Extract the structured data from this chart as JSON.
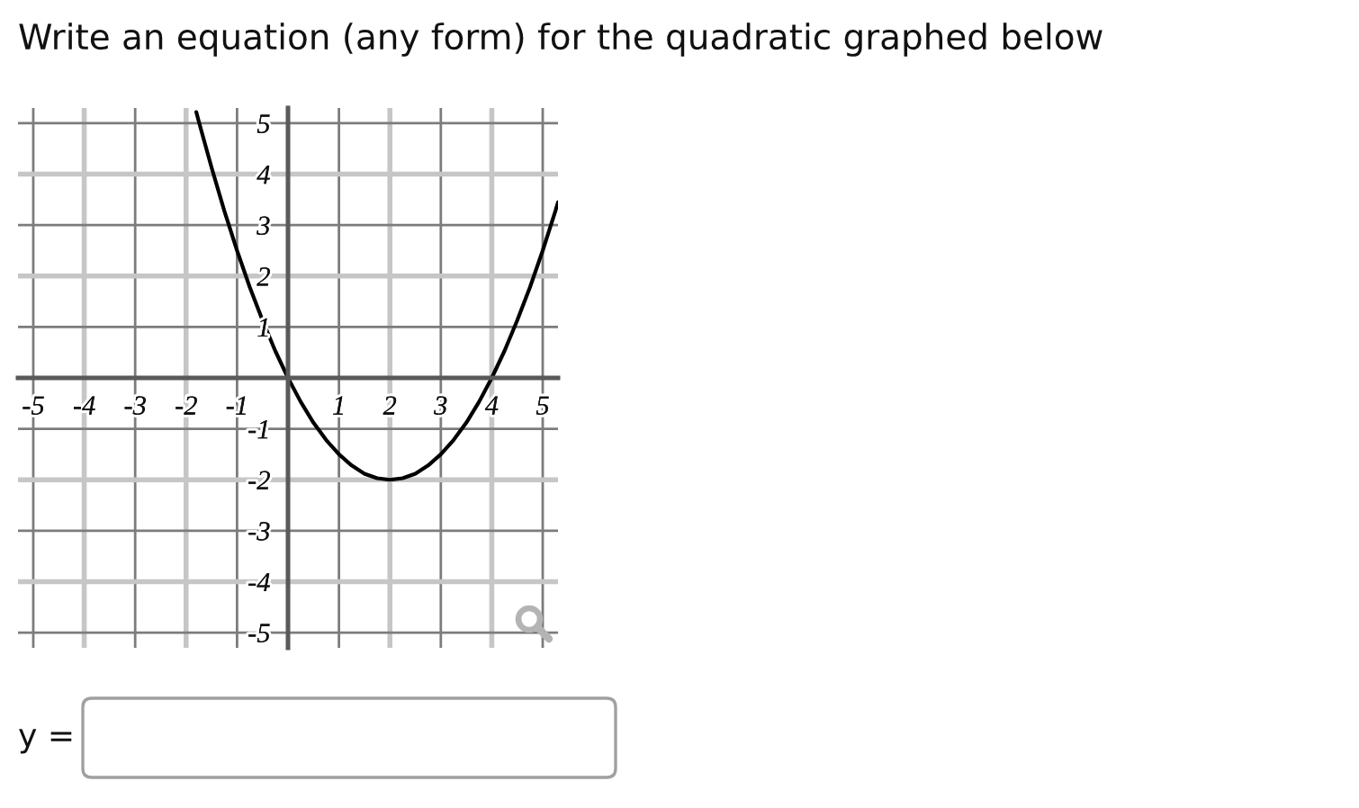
{
  "chart_data": {
    "type": "line",
    "title": "Write an equation (any form) for the quadratic graphed below",
    "x": [
      -1.8,
      -1.75,
      -1.5,
      -1.25,
      -1,
      -0.75,
      -0.5,
      -0.25,
      0,
      0.25,
      0.5,
      0.75,
      1,
      1.25,
      1.5,
      1.75,
      2,
      2.25,
      2.5,
      2.75,
      3,
      3.25,
      3.5,
      3.75,
      4,
      4.25,
      4.5,
      4.75,
      5,
      5.25,
      5.3
    ],
    "series": [
      {
        "color": "#000000",
        "values": [
          5.22,
          5.03,
          4.13,
          3.28,
          2.5,
          1.78,
          1.13,
          0.53,
          0,
          -0.47,
          -0.88,
          -1.22,
          -1.5,
          -1.72,
          -1.88,
          -1.97,
          -2,
          -1.97,
          -1.88,
          -1.72,
          -1.5,
          -1.22,
          -0.88,
          -0.47,
          0,
          0.53,
          1.13,
          1.78,
          2.5,
          3.28,
          3.45
        ]
      }
    ],
    "xlim": [
      -5.3,
      5.3
    ],
    "ylim": [
      -5.3,
      5.3
    ],
    "xticks": [
      -5,
      -4,
      -3,
      -2,
      -1,
      1,
      2,
      3,
      4,
      5
    ],
    "yticks": [
      -5,
      -4,
      -3,
      -2,
      -1,
      1,
      2,
      3,
      4,
      5
    ],
    "grid": true,
    "annotations": [
      "y ="
    ]
  }
}
